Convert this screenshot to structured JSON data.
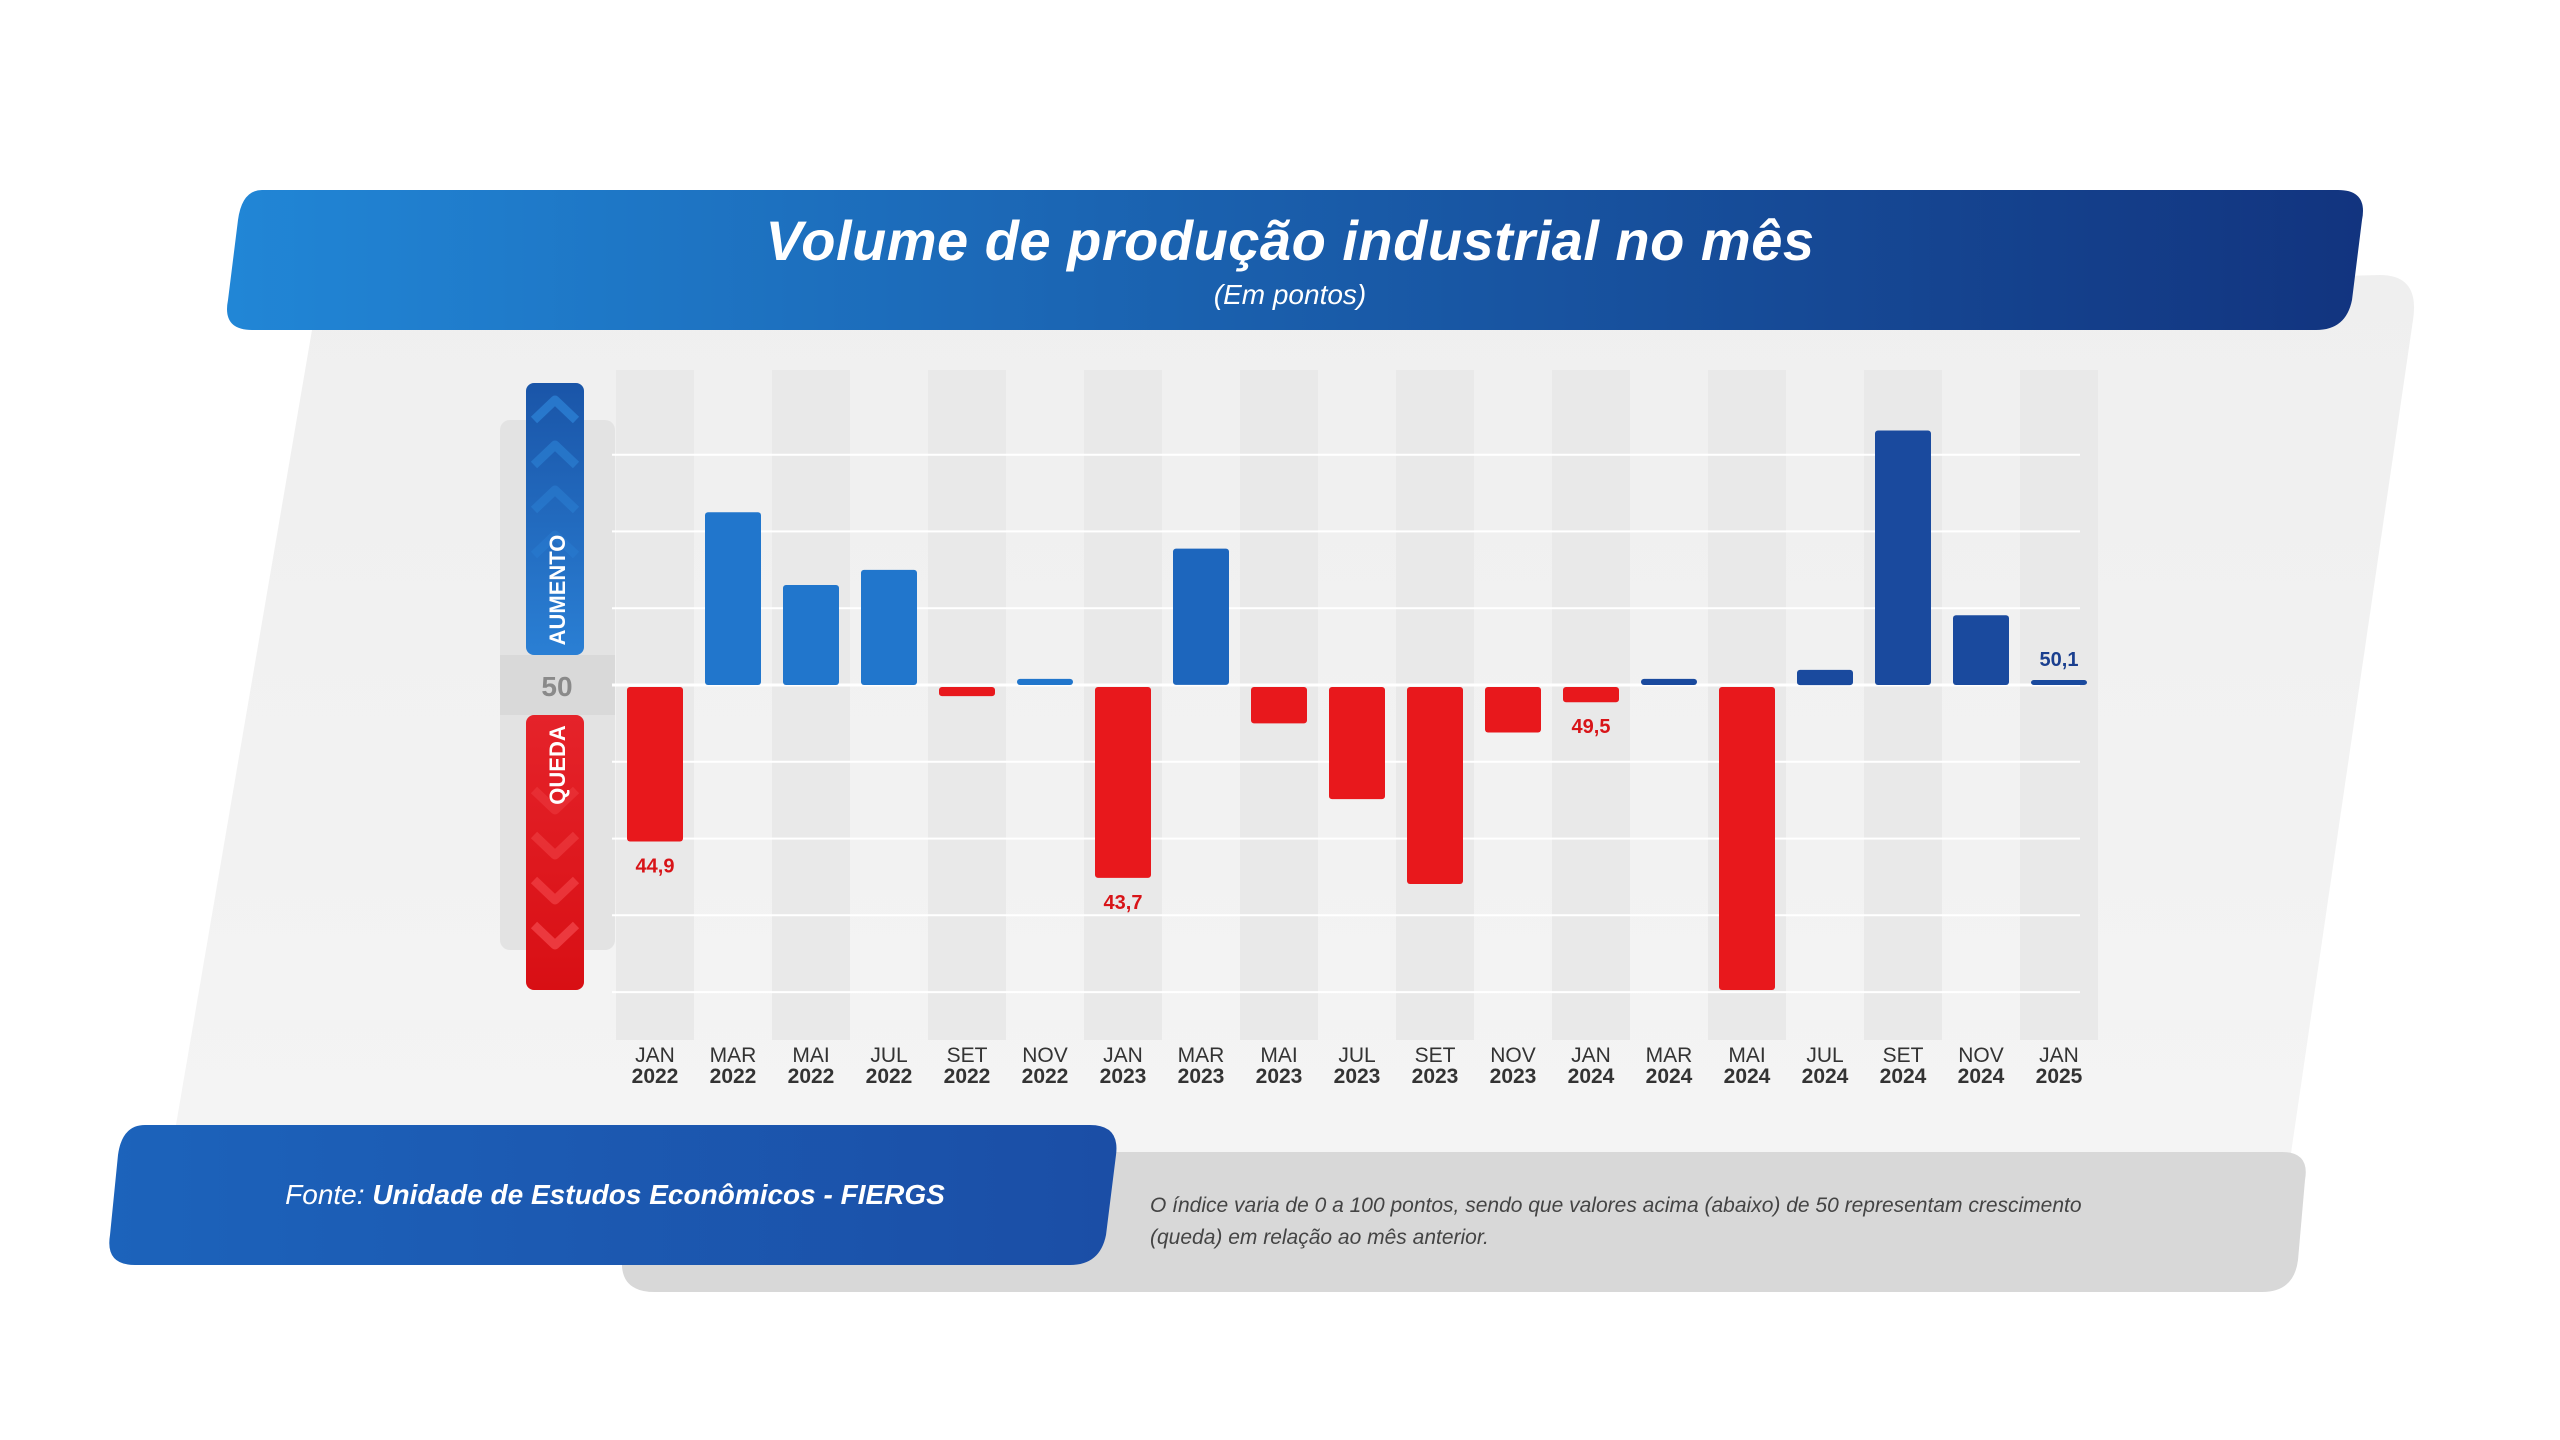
{
  "header": {
    "title": "Volume de produção industrial no mês",
    "subtitle": "(Em pontos)"
  },
  "side_scale": {
    "up_label": "AUMENTO",
    "down_label": "QUEDA",
    "center_label": "50"
  },
  "footer": {
    "source_prefix": "Fonte:",
    "source_name": "Unidade de Estudos Econômicos - FIERGS",
    "note": "O índice varia de 0 a 100 pontos, sendo que valores acima (abaixo) de 50 representam crescimento (queda) em relação ao mês anterior."
  },
  "colors": {
    "up_2022": "#2176cc",
    "up_2023": "#1d66bd",
    "up_2024": "#1a4a9e",
    "down": "#e8181c",
    "label_down": "#d81418",
    "label_up": "#1a3f8f"
  },
  "chart_data": {
    "type": "bar",
    "baseline": 50,
    "ylim": [
      40,
      60
    ],
    "grid": true,
    "categories": [
      [
        "JAN",
        "2022"
      ],
      [
        "MAR",
        "2022"
      ],
      [
        "MAI",
        "2022"
      ],
      [
        "JUL",
        "2022"
      ],
      [
        "SET",
        "2022"
      ],
      [
        "NOV",
        "2022"
      ],
      [
        "JAN",
        "2023"
      ],
      [
        "MAR",
        "2023"
      ],
      [
        "MAI",
        "2023"
      ],
      [
        "JUL",
        "2023"
      ],
      [
        "SET",
        "2023"
      ],
      [
        "NOV",
        "2023"
      ],
      [
        "JAN",
        "2024"
      ],
      [
        "MAR",
        "2024"
      ],
      [
        "MAI",
        "2024"
      ],
      [
        "JUL",
        "2024"
      ],
      [
        "SET",
        "2024"
      ],
      [
        "NOV",
        "2024"
      ],
      [
        "JAN",
        "2025"
      ]
    ],
    "values": [
      44.9,
      55.7,
      53.3,
      53.8,
      49.7,
      50.2,
      43.7,
      54.5,
      48.8,
      46.3,
      43.5,
      48.5,
      49.5,
      50.2,
      40.0,
      50.5,
      58.4,
      52.3,
      50.1
    ],
    "data_labels": [
      "44,9",
      "",
      "",
      "",
      "",
      "",
      "43,7",
      "",
      "",
      "",
      "",
      "",
      "49,5",
      "",
      "",
      "",
      "",
      "",
      "50,1"
    ]
  }
}
